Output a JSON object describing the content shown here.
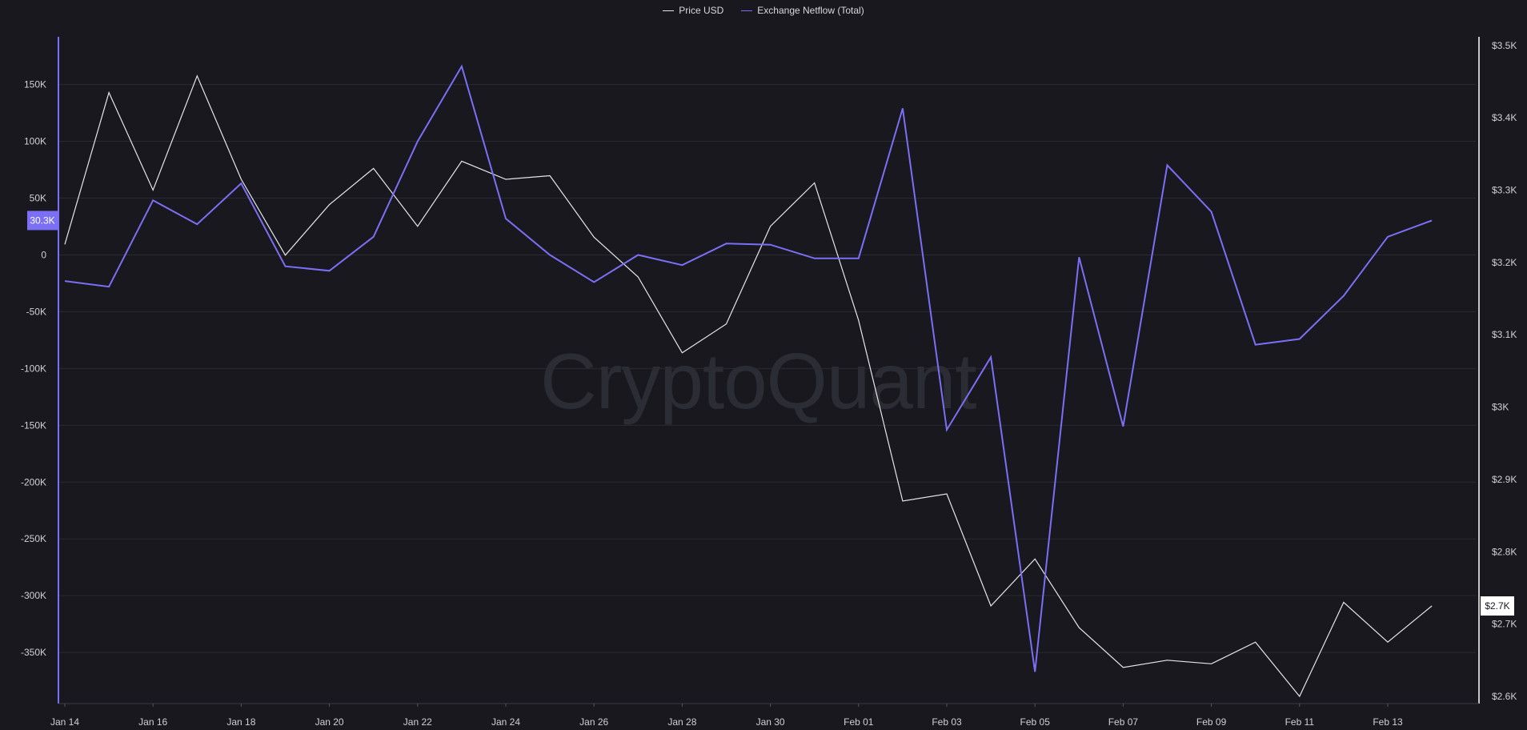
{
  "legend": {
    "price_label": "Price USD",
    "netflow_label": "Exchange Netflow (Total)"
  },
  "watermark": "CryptoQuant",
  "colors": {
    "background": "#18181e",
    "price": "#e6e6ea",
    "netflow": "#7b6ff5",
    "grid": "#2a2a32",
    "axis_left": "#7b6ff5",
    "axis_right": "#ffffff",
    "watermark": "#2c2c34"
  },
  "chart_data": {
    "type": "line",
    "x_label_dates": [
      "Jan 14",
      "Jan 16",
      "Jan 18",
      "Jan 20",
      "Jan 22",
      "Jan 24",
      "Jan 26",
      "Jan 28",
      "Jan 30",
      "Feb 01",
      "Feb 03",
      "Feb 05",
      "Feb 07",
      "Feb 09",
      "Feb 11",
      "Feb 13"
    ],
    "x": [
      "Jan 14",
      "Jan 15",
      "Jan 16",
      "Jan 17",
      "Jan 18",
      "Jan 19",
      "Jan 20",
      "Jan 21",
      "Jan 22",
      "Jan 23",
      "Jan 24",
      "Jan 25",
      "Jan 26",
      "Jan 27",
      "Jan 28",
      "Jan 29",
      "Jan 30",
      "Jan 31",
      "Feb 01",
      "Feb 02",
      "Feb 03",
      "Feb 04",
      "Feb 05",
      "Feb 06",
      "Feb 07",
      "Feb 08",
      "Feb 09",
      "Feb 10",
      "Feb 11",
      "Feb 12",
      "Feb 13",
      "Feb 14"
    ],
    "series": [
      {
        "name": "Price USD",
        "axis": "right",
        "values": [
          3225,
          3435,
          3300,
          3458,
          3315,
          3210,
          3280,
          3330,
          3250,
          3340,
          3315,
          3320,
          3235,
          3180,
          3075,
          3115,
          3250,
          3310,
          3120,
          2870,
          2880,
          2725,
          2790,
          2695,
          2640,
          2650,
          2645,
          2675,
          2600,
          2730,
          2675,
          2725
        ]
      },
      {
        "name": "Exchange Netflow (Total)",
        "axis": "left",
        "values": [
          -23000,
          -28000,
          48000,
          27000,
          63000,
          -10000,
          -14000,
          16000,
          100000,
          166000,
          32000,
          0,
          -24000,
          0,
          -9000,
          10000,
          9000,
          -3000,
          -3000,
          129000,
          -154000,
          -90000,
          -367000,
          -2000,
          -151000,
          79000,
          38000,
          -79000,
          -74000,
          -36000,
          16000,
          30300
        ]
      }
    ],
    "y_left": {
      "range": [
        -395000,
        192000
      ],
      "ticks": [
        150000,
        100000,
        50000,
        0,
        -50000,
        -100000,
        -150000,
        -200000,
        -250000,
        -300000,
        -350000
      ],
      "tick_labels": [
        "150K",
        "100K",
        "50K",
        "0",
        "-50K",
        "-100K",
        "-150K",
        "-200K",
        "-250K",
        "-300K",
        "-350K"
      ]
    },
    "y_right": {
      "range": [
        2590,
        3512
      ],
      "ticks": [
        3500,
        3400,
        3300,
        3200,
        3100,
        3000,
        2900,
        2800,
        2700,
        2600
      ],
      "tick_labels": [
        "$3.5K",
        "$3.4K",
        "$3.3K",
        "$3.2K",
        "$3.1K",
        "$3K",
        "$2.9K",
        "$2.8K",
        "$2.7K",
        "$2.6K"
      ]
    },
    "last_value_badges": {
      "left": "30.3K",
      "right": "$2.7K"
    },
    "grid": true,
    "legend_position": "top-center"
  }
}
